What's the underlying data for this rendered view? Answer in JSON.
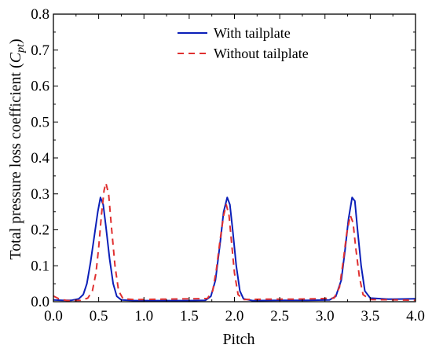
{
  "chart_data": {
    "type": "line",
    "xlabel": "Pitch",
    "ylabel": "Total pressure loss coefficient (",
    "ylabel_symbol": "C",
    "ylabel_subscript": "pt",
    "ylabel_close": ")",
    "xlim": [
      0.0,
      4.0
    ],
    "ylim": [
      0.0,
      0.8
    ],
    "xticks": [
      "0.0",
      "0.5",
      "1.0",
      "1.5",
      "2.0",
      "2.5",
      "3.0",
      "3.5",
      "4.0"
    ],
    "yticks": [
      "0.0",
      "0.1",
      "0.2",
      "0.3",
      "0.4",
      "0.5",
      "0.6",
      "0.7",
      "0.8"
    ],
    "grid": false,
    "legend_position": "top-center",
    "series": [
      {
        "name": "With tailplate",
        "color": "#0b1fb8",
        "style": "solid",
        "points": [
          [
            0.0,
            0.005
          ],
          [
            0.1,
            0.004
          ],
          [
            0.2,
            0.004
          ],
          [
            0.28,
            0.008
          ],
          [
            0.33,
            0.02
          ],
          [
            0.37,
            0.05
          ],
          [
            0.41,
            0.11
          ],
          [
            0.45,
            0.18
          ],
          [
            0.49,
            0.25
          ],
          [
            0.52,
            0.29
          ],
          [
            0.55,
            0.27
          ],
          [
            0.58,
            0.21
          ],
          [
            0.62,
            0.12
          ],
          [
            0.66,
            0.05
          ],
          [
            0.7,
            0.015
          ],
          [
            0.75,
            0.005
          ],
          [
            0.9,
            0.003
          ],
          [
            1.2,
            0.003
          ],
          [
            1.5,
            0.003
          ],
          [
            1.68,
            0.004
          ],
          [
            1.74,
            0.015
          ],
          [
            1.79,
            0.06
          ],
          [
            1.84,
            0.16
          ],
          [
            1.88,
            0.25
          ],
          [
            1.92,
            0.29
          ],
          [
            1.95,
            0.27
          ],
          [
            1.98,
            0.2
          ],
          [
            2.02,
            0.1
          ],
          [
            2.06,
            0.03
          ],
          [
            2.1,
            0.008
          ],
          [
            2.2,
            0.003
          ],
          [
            2.5,
            0.004
          ],
          [
            2.8,
            0.004
          ],
          [
            3.05,
            0.005
          ],
          [
            3.12,
            0.015
          ],
          [
            3.18,
            0.06
          ],
          [
            3.22,
            0.14
          ],
          [
            3.26,
            0.23
          ],
          [
            3.3,
            0.29
          ],
          [
            3.33,
            0.28
          ],
          [
            3.36,
            0.2
          ],
          [
            3.4,
            0.1
          ],
          [
            3.44,
            0.03
          ],
          [
            3.5,
            0.01
          ],
          [
            3.7,
            0.007
          ],
          [
            4.0,
            0.008
          ]
        ]
      },
      {
        "name": "Without tailplate",
        "color": "#e03030",
        "style": "dashed",
        "points": [
          [
            0.0,
            0.016
          ],
          [
            0.06,
            0.008
          ],
          [
            0.15,
            0.003
          ],
          [
            0.3,
            0.004
          ],
          [
            0.38,
            0.01
          ],
          [
            0.43,
            0.03
          ],
          [
            0.47,
            0.08
          ],
          [
            0.5,
            0.15
          ],
          [
            0.53,
            0.24
          ],
          [
            0.56,
            0.31
          ],
          [
            0.58,
            0.33
          ],
          [
            0.61,
            0.3
          ],
          [
            0.64,
            0.21
          ],
          [
            0.68,
            0.1
          ],
          [
            0.72,
            0.03
          ],
          [
            0.77,
            0.008
          ],
          [
            0.9,
            0.006
          ],
          [
            1.2,
            0.007
          ],
          [
            1.5,
            0.008
          ],
          [
            1.7,
            0.009
          ],
          [
            1.76,
            0.03
          ],
          [
            1.8,
            0.09
          ],
          [
            1.84,
            0.17
          ],
          [
            1.88,
            0.24
          ],
          [
            1.91,
            0.27
          ],
          [
            1.94,
            0.24
          ],
          [
            1.97,
            0.16
          ],
          [
            2.0,
            0.08
          ],
          [
            2.04,
            0.02
          ],
          [
            2.1,
            0.006
          ],
          [
            2.3,
            0.007
          ],
          [
            2.6,
            0.007
          ],
          [
            2.9,
            0.008
          ],
          [
            3.1,
            0.01
          ],
          [
            3.16,
            0.04
          ],
          [
            3.2,
            0.11
          ],
          [
            3.24,
            0.19
          ],
          [
            3.28,
            0.24
          ],
          [
            3.31,
            0.22
          ],
          [
            3.34,
            0.15
          ],
          [
            3.38,
            0.07
          ],
          [
            3.42,
            0.02
          ],
          [
            3.5,
            0.006
          ],
          [
            3.8,
            0.005
          ],
          [
            4.0,
            0.004
          ]
        ]
      }
    ]
  }
}
